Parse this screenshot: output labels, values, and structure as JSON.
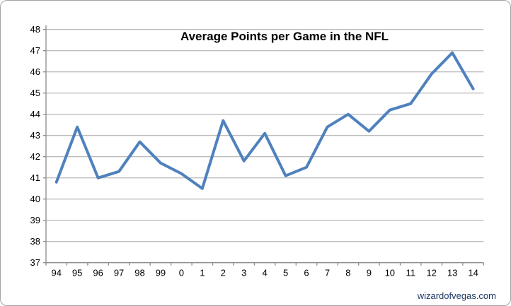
{
  "chart_data": {
    "type": "line",
    "title": "Average Points per Game in the NFL",
    "categories": [
      "94",
      "95",
      "96",
      "97",
      "98",
      "99",
      "0",
      "1",
      "2",
      "3",
      "4",
      "5",
      "6",
      "7",
      "8",
      "9",
      "10",
      "11",
      "12",
      "13",
      "14"
    ],
    "values": [
      40.8,
      43.4,
      41.0,
      41.3,
      42.7,
      41.7,
      41.2,
      40.5,
      43.7,
      41.8,
      43.1,
      41.1,
      41.5,
      43.4,
      44.0,
      43.2,
      44.2,
      44.5,
      45.9,
      46.9,
      45.2
    ],
    "xlabel": "",
    "ylabel": "",
    "ylim": [
      37,
      48
    ],
    "ytick_step": 1,
    "grid": true,
    "legend": false,
    "line_color": "#4F81BD",
    "gridline_color": "#A6A6A6",
    "axis_color": "#8C8C8C",
    "text_color": "#000000"
  },
  "watermark": {
    "text": "wizardofvegas.com",
    "color": "#1F3864"
  }
}
